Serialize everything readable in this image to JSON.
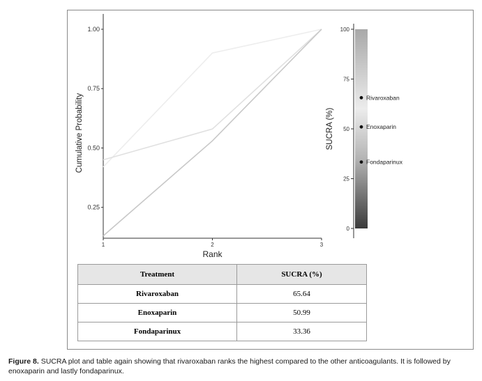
{
  "chart_data": [
    {
      "type": "line",
      "xlabel": "Rank",
      "ylabel": "Cumulative Probability",
      "x": [
        1,
        2,
        3
      ],
      "xlim": [
        1,
        3
      ],
      "ylim": [
        0.12,
        1.0
      ],
      "x_ticks": [
        "1",
        "2",
        "3"
      ],
      "y_ticks": [
        "0.25",
        "0.50",
        "0.75",
        "1.00"
      ],
      "y_tick_values": [
        0.25,
        0.5,
        0.75,
        1.0
      ],
      "grid": false,
      "series": [
        {
          "values": [
            0.42,
            0.9,
            1.0
          ],
          "color": "#ededed"
        },
        {
          "values": [
            0.45,
            0.58,
            1.0
          ],
          "color": "#e0e0e0"
        },
        {
          "values": [
            0.13,
            0.53,
            1.0
          ],
          "color": "#c8c8c8"
        }
      ]
    },
    {
      "type": "scatter",
      "ylabel": "SUCRA (%)",
      "ylim": [
        0,
        100
      ],
      "y_ticks": [
        "0",
        "25",
        "50",
        "75",
        "100"
      ],
      "y_tick_values": [
        0,
        25,
        50,
        75,
        100
      ],
      "legend": "colorbar, right of plot",
      "points": [
        {
          "label": "Rivaroxaban",
          "y": 65.64
        },
        {
          "label": "Enoxaparin",
          "y": 50.99
        },
        {
          "label": "Fondaparinux",
          "y": 33.36
        }
      ]
    }
  ],
  "table": {
    "headers": [
      "Treatment",
      "SUCRA (%)"
    ],
    "rows": [
      {
        "treatment": "Rivaroxaban",
        "sucra": "65.64"
      },
      {
        "treatment": "Enoxaparin",
        "sucra": "50.99"
      },
      {
        "treatment": "Fondaparinux",
        "sucra": "33.36"
      }
    ]
  },
  "caption": {
    "label": "Figure 8.",
    "text": "SUCRA plot and table again showing that rivaroxaban ranks the highest compared to the other anticoagulants. It is followed by enoxaparin and lastly fondaparinux."
  }
}
